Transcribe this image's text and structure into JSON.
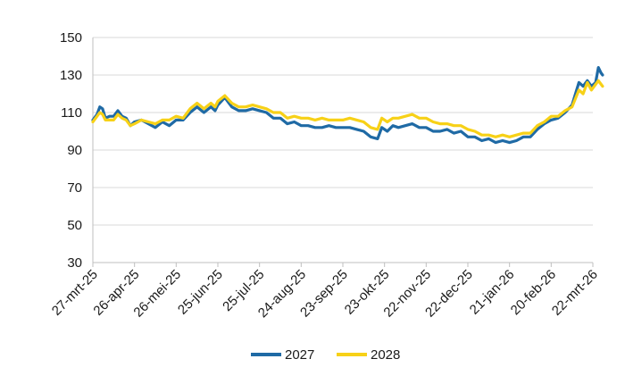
{
  "chart_data": {
    "type": "line",
    "title": "",
    "xlabel": "",
    "ylabel": "",
    "ylim": [
      30,
      150
    ],
    "yticks": [
      30,
      50,
      70,
      90,
      110,
      130,
      150
    ],
    "grid": true,
    "legend_position": "bottom-center",
    "x_start": "2025-03-27",
    "x_end": "2026-03-22",
    "xtick_labels": [
      "27-mrt-25",
      "26-apr-25",
      "26-mei-25",
      "25-jun-25",
      "25-jul-25",
      "24-aug-25",
      "23-sep-25",
      "23-okt-25",
      "22-nov-25",
      "22-dec-25",
      "21-jan-26",
      "20-feb-26",
      "22-mrt-26"
    ],
    "series": [
      {
        "name": "2027",
        "color": "#1f6aa5",
        "points": [
          [
            0,
            106
          ],
          [
            3,
            109
          ],
          [
            5,
            113
          ],
          [
            7,
            112
          ],
          [
            9,
            107
          ],
          [
            12,
            108
          ],
          [
            15,
            108
          ],
          [
            18,
            111
          ],
          [
            21,
            108
          ],
          [
            24,
            107
          ],
          [
            27,
            103
          ],
          [
            30,
            105
          ],
          [
            35,
            106
          ],
          [
            40,
            104
          ],
          [
            45,
            102
          ],
          [
            50,
            105
          ],
          [
            55,
            103
          ],
          [
            60,
            106
          ],
          [
            65,
            106
          ],
          [
            70,
            110
          ],
          [
            75,
            113
          ],
          [
            80,
            110
          ],
          [
            85,
            113
          ],
          [
            88,
            111
          ],
          [
            90,
            114
          ],
          [
            95,
            118
          ],
          [
            100,
            113
          ],
          [
            105,
            111
          ],
          [
            110,
            111
          ],
          [
            115,
            112
          ],
          [
            120,
            111
          ],
          [
            125,
            110
          ],
          [
            130,
            107
          ],
          [
            135,
            107
          ],
          [
            140,
            104
          ],
          [
            145,
            105
          ],
          [
            150,
            103
          ],
          [
            155,
            103
          ],
          [
            160,
            102
          ],
          [
            165,
            102
          ],
          [
            170,
            103
          ],
          [
            175,
            102
          ],
          [
            180,
            102
          ],
          [
            185,
            102
          ],
          [
            190,
            101
          ],
          [
            195,
            100
          ],
          [
            200,
            97
          ],
          [
            205,
            96
          ],
          [
            208,
            102
          ],
          [
            212,
            100
          ],
          [
            216,
            103
          ],
          [
            220,
            102
          ],
          [
            225,
            103
          ],
          [
            230,
            104
          ],
          [
            235,
            102
          ],
          [
            240,
            102
          ],
          [
            245,
            100
          ],
          [
            250,
            100
          ],
          [
            255,
            101
          ],
          [
            260,
            99
          ],
          [
            265,
            100
          ],
          [
            270,
            97
          ],
          [
            275,
            97
          ],
          [
            280,
            95
          ],
          [
            285,
            96
          ],
          [
            290,
            94
          ],
          [
            295,
            95
          ],
          [
            300,
            94
          ],
          [
            305,
            95
          ],
          [
            310,
            97
          ],
          [
            315,
            97
          ],
          [
            320,
            101
          ],
          [
            325,
            104
          ],
          [
            330,
            106
          ],
          [
            335,
            107
          ],
          [
            340,
            110
          ],
          [
            345,
            114
          ],
          [
            350,
            126
          ],
          [
            353,
            124
          ],
          [
            356,
            127
          ],
          [
            359,
            124
          ],
          [
            362,
            126
          ],
          [
            364,
            134
          ],
          [
            366,
            131
          ],
          [
            367,
            130
          ]
        ]
      },
      {
        "name": "2028",
        "color": "#f7d117",
        "points": [
          [
            0,
            105
          ],
          [
            3,
            108
          ],
          [
            5,
            110
          ],
          [
            7,
            109
          ],
          [
            9,
            106
          ],
          [
            12,
            106
          ],
          [
            15,
            106
          ],
          [
            18,
            109
          ],
          [
            21,
            107
          ],
          [
            24,
            106
          ],
          [
            27,
            103
          ],
          [
            30,
            104
          ],
          [
            35,
            106
          ],
          [
            40,
            105
          ],
          [
            45,
            104
          ],
          [
            50,
            106
          ],
          [
            55,
            106
          ],
          [
            60,
            108
          ],
          [
            65,
            107
          ],
          [
            70,
            112
          ],
          [
            75,
            115
          ],
          [
            80,
            112
          ],
          [
            85,
            115
          ],
          [
            88,
            113
          ],
          [
            90,
            116
          ],
          [
            95,
            119
          ],
          [
            100,
            115
          ],
          [
            105,
            113
          ],
          [
            110,
            113
          ],
          [
            115,
            114
          ],
          [
            120,
            113
          ],
          [
            125,
            112
          ],
          [
            130,
            110
          ],
          [
            135,
            110
          ],
          [
            140,
            107
          ],
          [
            145,
            108
          ],
          [
            150,
            107
          ],
          [
            155,
            107
          ],
          [
            160,
            106
          ],
          [
            165,
            107
          ],
          [
            170,
            106
          ],
          [
            175,
            106
          ],
          [
            180,
            106
          ],
          [
            185,
            107
          ],
          [
            190,
            106
          ],
          [
            195,
            105
          ],
          [
            200,
            102
          ],
          [
            205,
            101
          ],
          [
            208,
            107
          ],
          [
            212,
            105
          ],
          [
            216,
            107
          ],
          [
            220,
            107
          ],
          [
            225,
            108
          ],
          [
            230,
            109
          ],
          [
            235,
            107
          ],
          [
            240,
            107
          ],
          [
            245,
            105
          ],
          [
            250,
            104
          ],
          [
            255,
            104
          ],
          [
            260,
            103
          ],
          [
            265,
            103
          ],
          [
            270,
            101
          ],
          [
            275,
            100
          ],
          [
            280,
            98
          ],
          [
            285,
            98
          ],
          [
            290,
            97
          ],
          [
            295,
            98
          ],
          [
            300,
            97
          ],
          [
            305,
            98
          ],
          [
            310,
            99
          ],
          [
            315,
            99
          ],
          [
            320,
            103
          ],
          [
            325,
            105
          ],
          [
            330,
            108
          ],
          [
            335,
            108
          ],
          [
            340,
            111
          ],
          [
            345,
            113
          ],
          [
            350,
            122
          ],
          [
            353,
            120
          ],
          [
            356,
            126
          ],
          [
            359,
            122
          ],
          [
            362,
            125
          ],
          [
            364,
            127
          ],
          [
            366,
            125
          ],
          [
            367,
            124
          ]
        ]
      }
    ]
  }
}
